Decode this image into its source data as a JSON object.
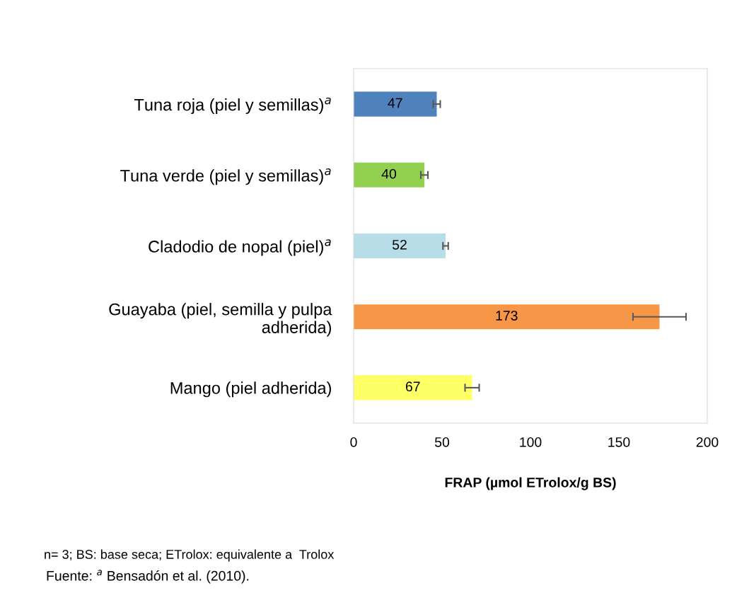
{
  "chart_data": {
    "type": "bar",
    "orientation": "horizontal",
    "xlabel": "FRAP (µmol ETrolox/g BS)",
    "categories": [
      "Tuna roja (piel y semillas)$^{a}$",
      "Tuna verde (piel y semillas)$^{a}$",
      "Cladodio de nopal (piel)$^{a}$",
      "Guayaba (piel, semilla y pulpa\nadherida)",
      "Mango (piel adherida)"
    ],
    "values": [
      47,
      40,
      52,
      173,
      67
    ],
    "colors": [
      "#4f81bd",
      "#92d050",
      "#b7dde8",
      "#f79646",
      "#ffff66"
    ],
    "errors": [
      2,
      2,
      1.5,
      15,
      4
    ],
    "data_labels": true,
    "xlim": [
      0,
      200
    ],
    "xticks": [
      0,
      50,
      100,
      150,
      200
    ],
    "grid": false,
    "legend": false,
    "annotations": [
      "n= 3; BS: base seca; ETrolox: equivalente a  Trolox",
      "Fuente: $^{a}$ Bensadón et al. (2010)."
    ]
  }
}
